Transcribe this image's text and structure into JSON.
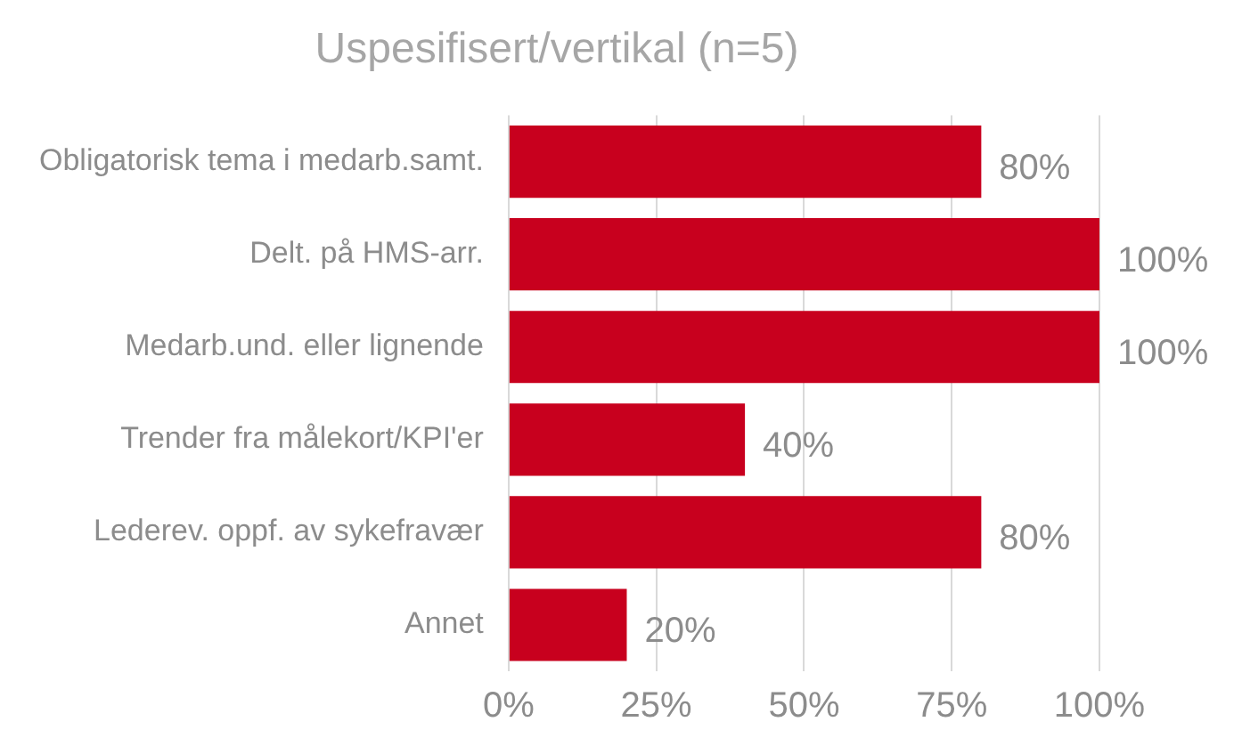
{
  "chart_data": {
    "type": "bar",
    "orientation": "horizontal",
    "title": "Uspesifisert/vertikal (n=5)",
    "categories": [
      "Obligatorisk tema i medarb.samt.",
      "Delt. på HMS-arr.",
      "Medarb.und. eller lignende",
      "Trender fra målekort/KPI'er",
      "Lederev. oppf. av sykefravær",
      "Annet"
    ],
    "values": [
      80,
      100,
      100,
      40,
      80,
      20
    ],
    "color": "#c8001e",
    "value_labels": [
      "80%",
      "100%",
      "100%",
      "40%",
      "80%",
      "20%"
    ],
    "xlim": [
      0,
      100
    ],
    "xticks": [
      {
        "value": 0,
        "label": "0%"
      },
      {
        "value": 25,
        "label": "25%"
      },
      {
        "value": 50,
        "label": "50%"
      },
      {
        "value": 75,
        "label": "75%"
      },
      {
        "value": 100,
        "label": "100%"
      }
    ],
    "grid": "x",
    "legend": false
  }
}
